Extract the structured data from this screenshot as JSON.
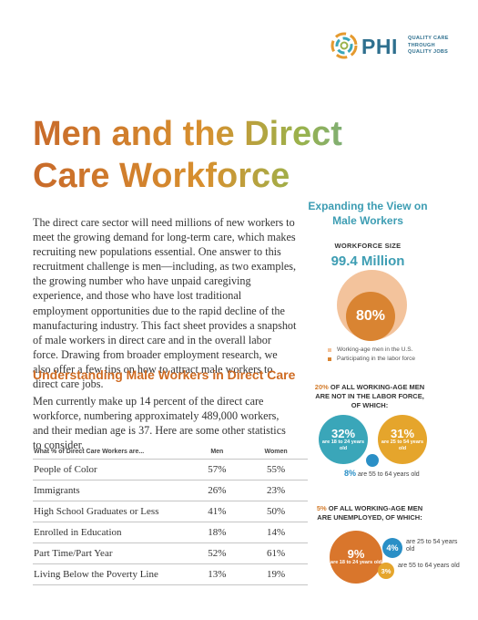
{
  "logo": {
    "word": "PHI",
    "tagline": [
      "QUALITY CARE",
      "THROUGH",
      "QUALITY JOBS"
    ]
  },
  "title_lines": [
    "Men and the Direct",
    "Care Workforce"
  ],
  "intro": "The direct care sector will need millions of new workers to meet the growing demand for long-term care, which makes recruiting new populations essential. One answer to this recruitment challenge is men—including, as two examples, the growing number who have unpaid caregiving experience, and those who have lost traditional employment opportunities due to the rapid decline of the manufacturing industry. This fact sheet provides a snapshot of male workers in direct care and in the overall labor force. Drawing from broader employment research, we also offer a few tips on how to attract male workers to direct care jobs.",
  "section": {
    "heading": "Understanding Male Workers in Direct Care",
    "paragraph": "Men currently make up 14 percent of the direct care workforce, numbering approximately 489,000 workers, and their median age is 37. Here are some other statistics to consider."
  },
  "table": {
    "headers": [
      "What % of Direct Care Workers are...",
      "Men",
      "Women"
    ],
    "rows": [
      [
        "People of Color",
        "57%",
        "55%"
      ],
      [
        "Immigrants",
        "26%",
        "23%"
      ],
      [
        "High School Graduates or Less",
        "41%",
        "50%"
      ],
      [
        "Enrolled in Education",
        "18%",
        "14%"
      ],
      [
        "Part Time/Part Year",
        "52%",
        "61%"
      ],
      [
        "Living Below the Poverty Line",
        "13%",
        "19%"
      ]
    ]
  },
  "sidebar": {
    "heading": "Expanding the View on Male Workers",
    "workforce_label": "WORKFORCE SIZE",
    "workforce_value": "99.4 Million",
    "participation": {
      "value": "80%",
      "fraction": 0.8
    },
    "legend": [
      {
        "label": "Working-age men in the U.S.",
        "color": "#f3c39c"
      },
      {
        "label": "Participating in the labor force",
        "color": "#d98432"
      }
    ],
    "not_in_labor": {
      "pct": "20%",
      "text": "OF ALL WORKING-AGE MEN ARE NOT IN THE LABOR FORCE, OF WHICH:",
      "items": [
        {
          "value": "32%",
          "label": "are 18 to 24 years old",
          "color": "#3aa6b9"
        },
        {
          "value": "31%",
          "label": "are 25 to 54 years old",
          "color": "#e5a52c"
        },
        {
          "value": "8%",
          "label": "are 55 to 64 years old",
          "color": "#2a8fc6"
        }
      ]
    },
    "unemployed": {
      "pct": "5%",
      "text": "OF ALL WORKING-AGE MEN ARE UNEMPLOYED, OF WHICH:",
      "items": [
        {
          "value": "9%",
          "label": "are 18 to 24 years old",
          "color": "#d9762c"
        },
        {
          "value": "4%",
          "label": "are 25 to 54 years old",
          "color": "#2a8fc6"
        },
        {
          "value": "3%",
          "label": "are 55 to 64 years old",
          "color": "#e5a52c"
        }
      ]
    }
  }
}
